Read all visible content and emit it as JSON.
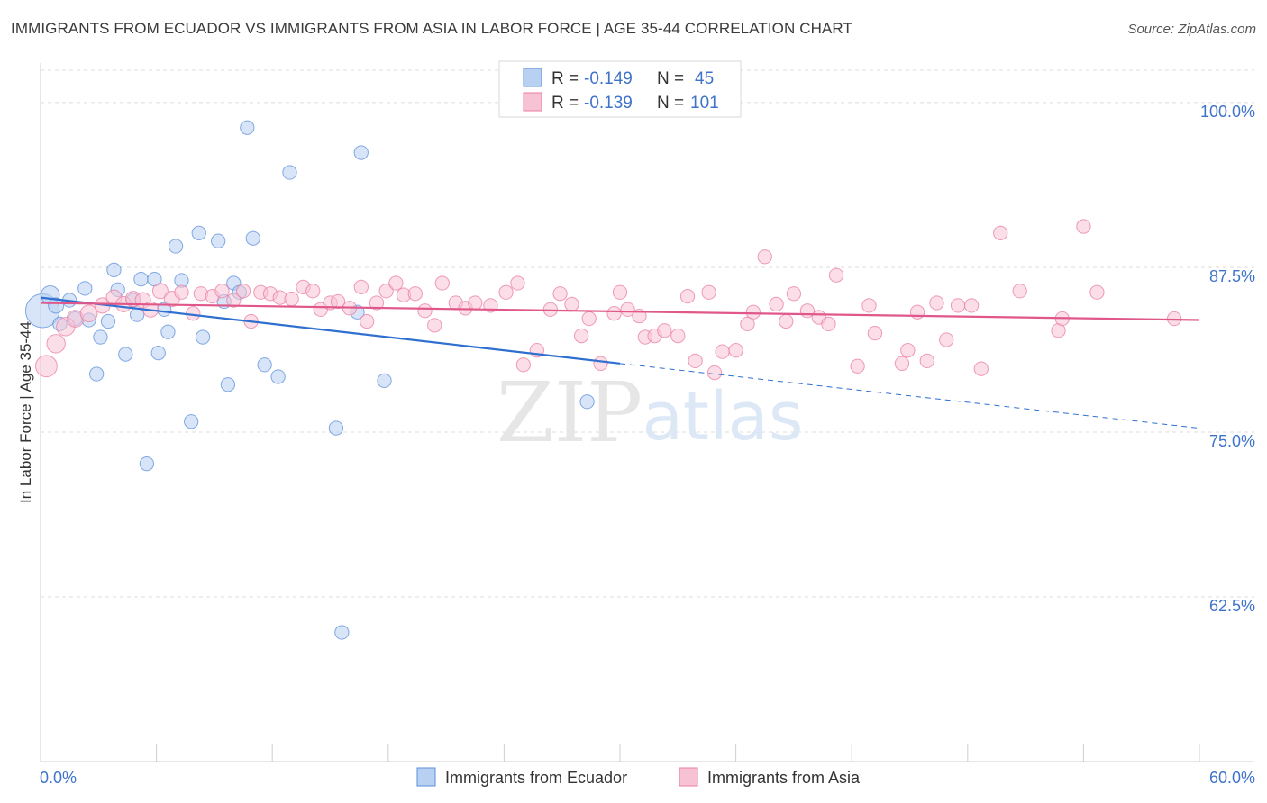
{
  "header": {
    "title": "IMMIGRANTS FROM ECUADOR VS IMMIGRANTS FROM ASIA IN LABOR FORCE | AGE 35-44 CORRELATION CHART",
    "source": "Source: ZipAtlas.com"
  },
  "watermark": {
    "zip": "ZIP",
    "atlas": "atlas"
  },
  "legend_top": [
    {
      "r_label": "R =",
      "r_value": "-0.149",
      "n_label": "N =",
      "n_value": "45",
      "color": "#5b8fd9"
    },
    {
      "r_label": "R =",
      "r_value": "-0.139",
      "n_label": "N =",
      "n_value": "101",
      "color": "#e97ca0"
    }
  ],
  "chart_data": {
    "type": "scatter",
    "xlabel": "",
    "ylabel": "In Labor Force | Age 35-44",
    "xlim": [
      0,
      60
    ],
    "ylim": [
      50,
      103
    ],
    "x_tick_labels": [
      "0.0%",
      "60.0%"
    ],
    "y_ticks": [
      62.5,
      75.0,
      87.5,
      100.0
    ],
    "y_tick_labels": [
      "62.5%",
      "75.0%",
      "87.5%",
      "100.0%"
    ],
    "grid": "horizontal dashed",
    "legend_position": "bottom",
    "series": [
      {
        "name": "Immigrants from Ecuador",
        "color": "#5b8fd9",
        "fill": "#b8d0f2",
        "trend": {
          "x_start": 0.0,
          "y_start": 85.2,
          "x_solid_end": 30.0,
          "y_solid_end": 80.2,
          "x_end": 60.0,
          "y_end": 75.3
        },
        "points": [
          [
            0.1,
            84.2,
            2.2
          ],
          [
            0.5,
            85.4,
            1.2
          ],
          [
            0.8,
            84.6,
            1.0
          ],
          [
            1.0,
            83.2,
            0.9
          ],
          [
            1.5,
            85.0,
            0.9
          ],
          [
            1.8,
            83.6,
            0.9
          ],
          [
            2.3,
            85.9,
            0.9
          ],
          [
            2.5,
            83.5,
            0.9
          ],
          [
            2.9,
            79.4,
            0.9
          ],
          [
            3.1,
            82.2,
            0.9
          ],
          [
            3.5,
            83.4,
            0.9
          ],
          [
            3.8,
            87.3,
            0.9
          ],
          [
            4.0,
            85.8,
            0.9
          ],
          [
            4.4,
            80.9,
            0.9
          ],
          [
            4.8,
            85.0,
            0.9
          ],
          [
            5.0,
            83.9,
            0.9
          ],
          [
            5.2,
            86.6,
            0.9
          ],
          [
            5.5,
            72.6,
            0.9
          ],
          [
            5.9,
            86.6,
            0.9
          ],
          [
            6.1,
            81.0,
            0.9
          ],
          [
            6.4,
            84.3,
            0.9
          ],
          [
            6.6,
            82.6,
            0.9
          ],
          [
            7.0,
            89.1,
            0.9
          ],
          [
            7.3,
            86.5,
            0.9
          ],
          [
            7.8,
            75.8,
            0.9
          ],
          [
            8.2,
            90.1,
            0.9
          ],
          [
            8.4,
            82.2,
            0.9
          ],
          [
            9.2,
            89.5,
            0.9
          ],
          [
            9.5,
            84.9,
            0.9
          ],
          [
            9.7,
            78.6,
            0.9
          ],
          [
            10.0,
            86.3,
            0.9
          ],
          [
            10.3,
            85.6,
            0.9
          ],
          [
            10.7,
            98.1,
            0.9
          ],
          [
            11.0,
            89.7,
            0.9
          ],
          [
            11.6,
            80.1,
            0.9
          ],
          [
            12.3,
            79.2,
            0.9
          ],
          [
            12.9,
            94.7,
            0.9
          ],
          [
            15.3,
            75.3,
            0.9
          ],
          [
            15.6,
            59.8,
            0.9
          ],
          [
            16.4,
            84.1,
            0.9
          ],
          [
            16.6,
            96.2,
            0.9
          ],
          [
            17.8,
            78.9,
            0.9
          ],
          [
            28.3,
            77.3,
            0.9
          ]
        ]
      },
      {
        "name": "Immigrants from Asia",
        "color": "#e97ca0",
        "fill": "#f7c3d4",
        "trend": {
          "x_start": 0.0,
          "y_start": 84.8,
          "x_solid_end": 60.0,
          "y_solid_end": 83.5,
          "x_end": 60.0,
          "y_end": 83.5
        },
        "points": [
          [
            0.3,
            80.0,
            1.4
          ],
          [
            0.8,
            81.7,
            1.2
          ],
          [
            1.3,
            83.0,
            1.2
          ],
          [
            1.8,
            83.6,
            1.1
          ],
          [
            2.5,
            84.0,
            1.1
          ],
          [
            3.2,
            84.6,
            1.0
          ],
          [
            3.8,
            85.2,
            1.0
          ],
          [
            4.3,
            84.7,
            1.0
          ],
          [
            4.8,
            85.1,
            1.0
          ],
          [
            5.3,
            85.0,
            1.0
          ],
          [
            5.7,
            84.3,
            1.0
          ],
          [
            6.2,
            85.7,
            1.0
          ],
          [
            6.8,
            85.1,
            1.0
          ],
          [
            7.3,
            85.6,
            0.9
          ],
          [
            7.9,
            84.0,
            0.9
          ],
          [
            8.3,
            85.5,
            0.9
          ],
          [
            8.9,
            85.3,
            0.9
          ],
          [
            9.4,
            85.7,
            0.9
          ],
          [
            10.0,
            85.0,
            0.9
          ],
          [
            10.5,
            85.7,
            0.9
          ],
          [
            10.9,
            83.4,
            0.9
          ],
          [
            11.4,
            85.6,
            0.9
          ],
          [
            11.9,
            85.5,
            0.9
          ],
          [
            12.4,
            85.2,
            0.9
          ],
          [
            13.0,
            85.1,
            0.9
          ],
          [
            13.6,
            86.0,
            0.9
          ],
          [
            14.1,
            85.7,
            0.9
          ],
          [
            14.5,
            84.3,
            0.9
          ],
          [
            15.0,
            84.8,
            0.9
          ],
          [
            15.4,
            84.9,
            0.9
          ],
          [
            16.0,
            84.4,
            0.9
          ],
          [
            16.6,
            86.0,
            0.9
          ],
          [
            16.9,
            83.4,
            0.9
          ],
          [
            17.4,
            84.8,
            0.9
          ],
          [
            17.9,
            85.7,
            0.9
          ],
          [
            18.4,
            86.3,
            0.9
          ],
          [
            18.8,
            85.4,
            0.9
          ],
          [
            19.4,
            85.5,
            0.9
          ],
          [
            19.9,
            84.2,
            0.9
          ],
          [
            20.4,
            83.1,
            0.9
          ],
          [
            20.8,
            86.3,
            0.9
          ],
          [
            21.5,
            84.8,
            0.9
          ],
          [
            22.0,
            84.4,
            0.9
          ],
          [
            22.5,
            84.8,
            0.9
          ],
          [
            23.3,
            84.6,
            0.9
          ],
          [
            24.1,
            85.6,
            0.9
          ],
          [
            24.7,
            86.3,
            0.9
          ],
          [
            25.0,
            80.1,
            0.9
          ],
          [
            25.7,
            81.2,
            0.9
          ],
          [
            26.4,
            84.3,
            0.9
          ],
          [
            26.9,
            85.5,
            0.9
          ],
          [
            27.5,
            84.7,
            0.9
          ],
          [
            28.0,
            82.3,
            0.9
          ],
          [
            28.4,
            83.6,
            0.9
          ],
          [
            29.0,
            80.2,
            0.9
          ],
          [
            29.7,
            84.0,
            0.9
          ],
          [
            30.0,
            85.6,
            0.9
          ],
          [
            30.4,
            84.3,
            0.9
          ],
          [
            31.0,
            83.8,
            0.9
          ],
          [
            31.3,
            82.2,
            0.9
          ],
          [
            31.8,
            82.3,
            0.9
          ],
          [
            32.3,
            82.7,
            0.9
          ],
          [
            33.0,
            82.3,
            0.9
          ],
          [
            33.5,
            85.3,
            0.9
          ],
          [
            33.9,
            80.4,
            0.9
          ],
          [
            34.6,
            85.6,
            0.9
          ],
          [
            34.9,
            79.5,
            0.9
          ],
          [
            35.3,
            81.1,
            0.9
          ],
          [
            36.0,
            81.2,
            0.9
          ],
          [
            36.6,
            83.2,
            0.9
          ],
          [
            36.9,
            84.1,
            0.9
          ],
          [
            37.5,
            88.3,
            0.9
          ],
          [
            38.1,
            84.7,
            0.9
          ],
          [
            38.6,
            83.4,
            0.9
          ],
          [
            39.0,
            85.5,
            0.9
          ],
          [
            39.7,
            84.2,
            0.9
          ],
          [
            40.3,
            83.7,
            0.9
          ],
          [
            40.8,
            83.2,
            0.9
          ],
          [
            41.2,
            86.9,
            0.9
          ],
          [
            42.3,
            80.0,
            0.9
          ],
          [
            42.9,
            84.6,
            0.9
          ],
          [
            43.2,
            82.5,
            0.9
          ],
          [
            44.6,
            80.2,
            0.9
          ],
          [
            44.9,
            81.2,
            0.9
          ],
          [
            45.4,
            84.1,
            0.9
          ],
          [
            45.9,
            80.4,
            0.9
          ],
          [
            46.4,
            84.8,
            0.9
          ],
          [
            46.9,
            82.0,
            0.9
          ],
          [
            47.5,
            84.6,
            0.9
          ],
          [
            48.2,
            84.6,
            0.9
          ],
          [
            48.7,
            79.8,
            0.9
          ],
          [
            49.7,
            90.1,
            0.9
          ],
          [
            50.7,
            85.7,
            0.9
          ],
          [
            52.7,
            82.7,
            0.9
          ],
          [
            52.9,
            83.6,
            0.9
          ],
          [
            54.0,
            90.6,
            0.9
          ],
          [
            54.7,
            85.6,
            0.9
          ],
          [
            58.7,
            83.6,
            0.9
          ]
        ]
      }
    ]
  },
  "legend_bottom": [
    {
      "label": "Immigrants from Ecuador",
      "color": "#5b8fd9",
      "fill": "#b8d0f2"
    },
    {
      "label": "Immigrants from Asia",
      "color": "#e97ca0",
      "fill": "#f7c3d4"
    }
  ]
}
